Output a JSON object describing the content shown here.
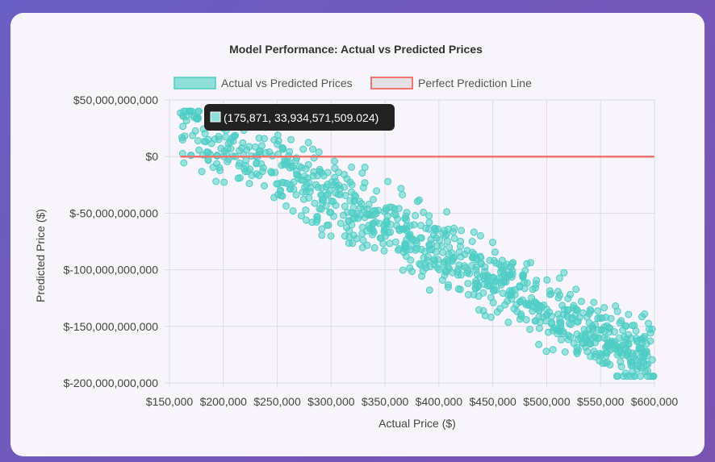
{
  "chart_data": {
    "type": "scatter",
    "title": "Model Performance: Actual vs Predicted Prices",
    "xlabel": "Actual Price ($)",
    "ylabel": "Predicted Price ($)",
    "xlim": [
      150000,
      600000
    ],
    "ylim": [
      -200000000000,
      50000000000
    ],
    "x_ticks": [
      "$150,000",
      "$200,000",
      "$250,000",
      "$300,000",
      "$350,000",
      "$400,000",
      "$450,000",
      "$500,000",
      "$550,000",
      "$600,000"
    ],
    "y_ticks": [
      "$50,000,000,000",
      "$0",
      "$-50,000,000,000",
      "$-100,000,000,000",
      "$-150,000,000,000",
      "$-200,000,000,000"
    ],
    "grid": true,
    "legend_position": "top",
    "series": [
      {
        "name": "Actual vs Predicted Prices",
        "color": "#4ecdc4",
        "band_start": {
          "x": 160000,
          "y": 30000000000
        },
        "band_end": {
          "x": 600000,
          "y": -180000000000
        },
        "point_count": 900
      },
      {
        "name": "Perfect Prediction Line",
        "color": "#f07470",
        "points": [
          [
            160000,
            0
          ],
          [
            600000,
            0
          ]
        ]
      }
    ],
    "tooltip": {
      "text": "(175,871, 33,934,571,509.024)",
      "x": 175871,
      "y": 33934571509.024
    }
  }
}
